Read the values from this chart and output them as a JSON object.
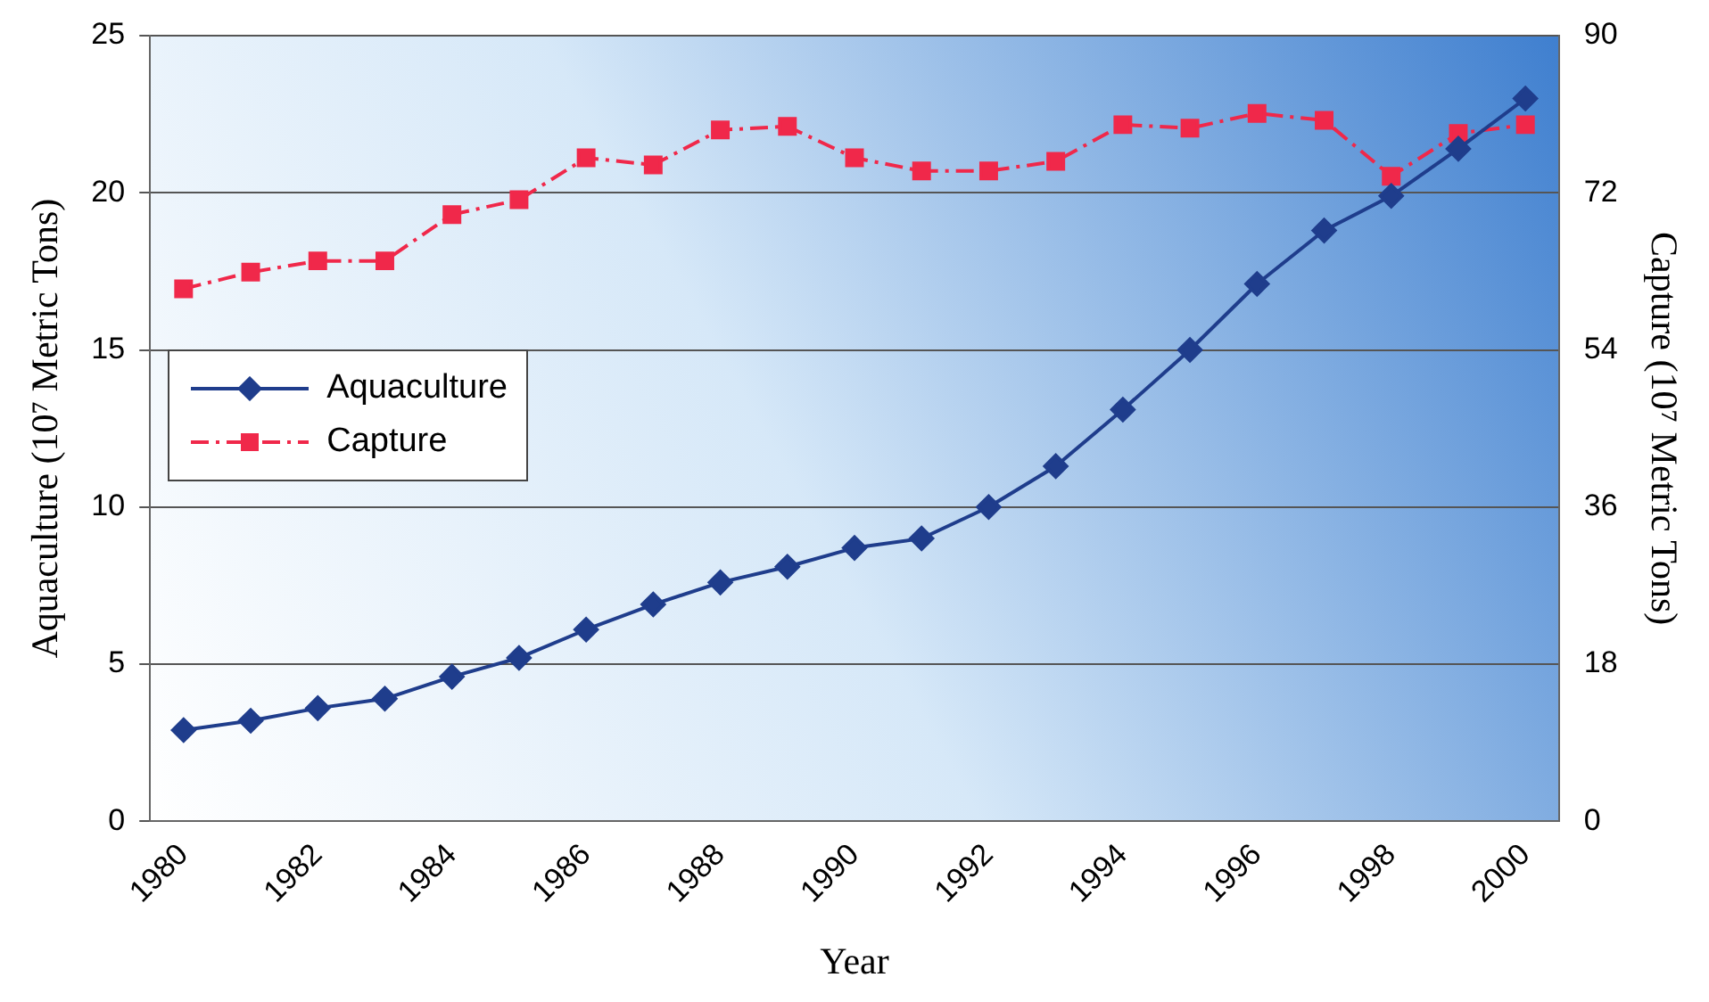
{
  "chart_data": {
    "type": "line",
    "xlabel": "Year",
    "ylabel": "Aquaculture (10⁷ Metric Tons)",
    "y2label": "Capture (10⁷ Metric Tons)",
    "categories": [
      "1980",
      null,
      "1982",
      null,
      "1984",
      null,
      "1986",
      null,
      "1988",
      null,
      "1990",
      null,
      "1992",
      null,
      "1994",
      null,
      "1996",
      null,
      "1998",
      null,
      "2000"
    ],
    "series": [
      {
        "name": "Aquaculture",
        "color": "#1f3d8c",
        "marker": "diamond",
        "line_style": "solid",
        "values": [
          2.9,
          3.2,
          3.6,
          3.9,
          4.6,
          5.2,
          6.1,
          6.9,
          7.6,
          8.1,
          8.7,
          9.0,
          10.0,
          11.3,
          13.1,
          15.0,
          17.1,
          18.8,
          19.9,
          21.4,
          23.0
        ]
      },
      {
        "name": "Capture",
        "color": "#f0284a",
        "marker": "square",
        "line_style": "dashed",
        "axis": "y2",
        "values": [
          61.0,
          62.9,
          64.2,
          64.2,
          69.5,
          71.2,
          76.0,
          75.2,
          79.2,
          79.6,
          76.0,
          74.5,
          74.5,
          75.6,
          79.8,
          79.4,
          81.1,
          80.3,
          73.9,
          78.8,
          79.8
        ]
      }
    ],
    "ylim": [
      0,
      25
    ],
    "yticks": [
      0,
      5,
      10,
      15,
      20,
      25
    ],
    "y2lim": [
      0,
      90
    ],
    "y2ticks": [
      0,
      18,
      36,
      54,
      72,
      90
    ],
    "grid": "y",
    "legend": "left"
  }
}
